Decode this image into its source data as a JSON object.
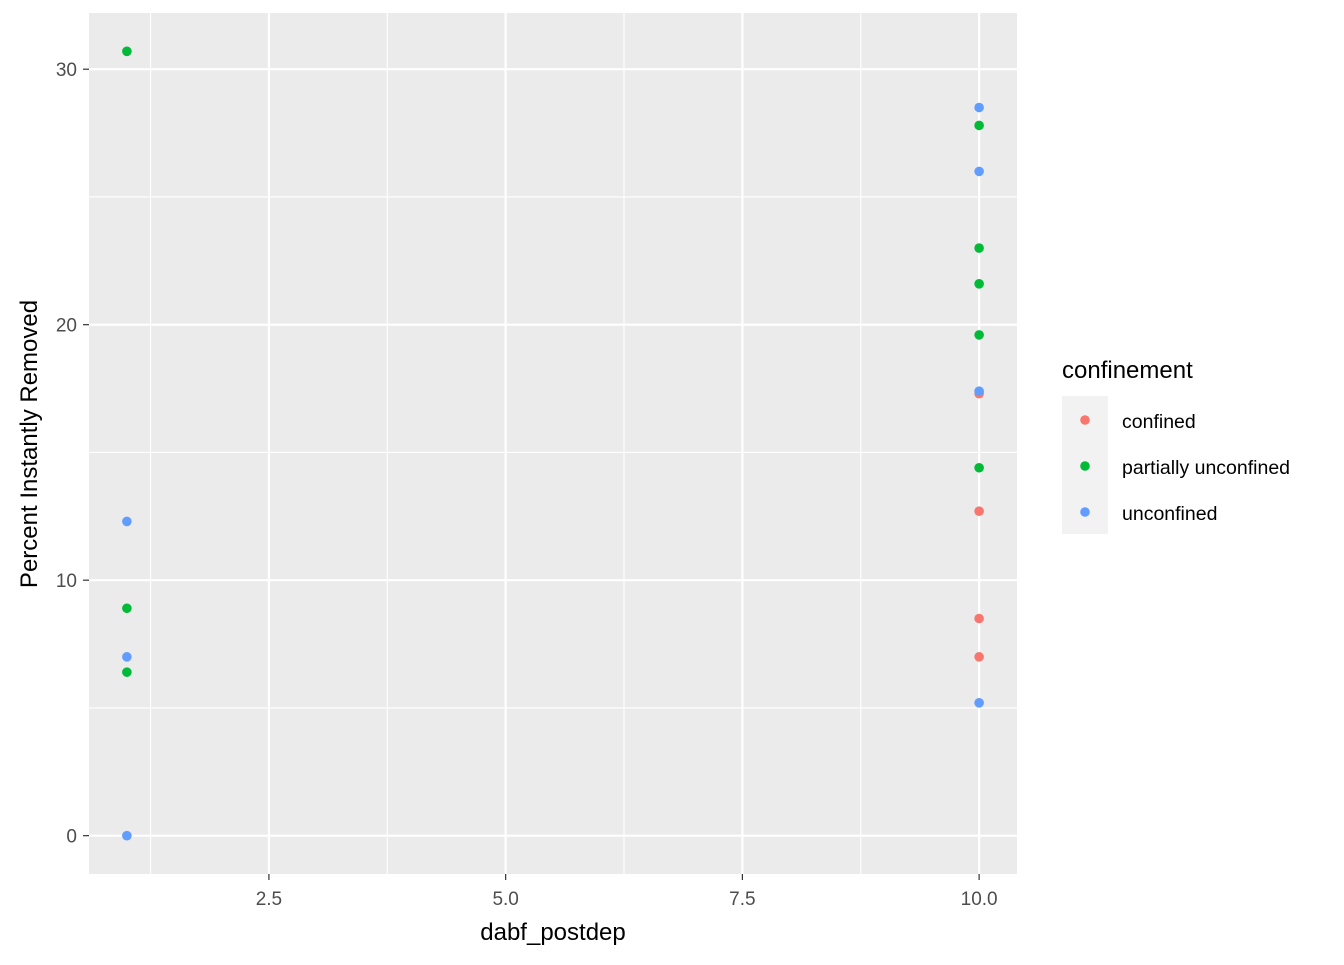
{
  "chart_data": {
    "type": "scatter",
    "title": "",
    "xlabel": "dabf_postdep",
    "ylabel": "Percent Instantly Removed",
    "xlim": [
      0.6,
      10.4
    ],
    "ylim": [
      -1.5,
      32.2
    ],
    "x_ticks": [
      2.5,
      5.0,
      7.5,
      10.0
    ],
    "x_tick_labels": [
      "2.5",
      "5.0",
      "7.5",
      "10.0"
    ],
    "y_ticks": [
      0,
      10,
      20,
      30
    ],
    "y_tick_labels": [
      "0",
      "10",
      "20",
      "30"
    ],
    "grid": true,
    "legend": {
      "title": "confinement",
      "position": "right"
    },
    "series": [
      {
        "name": "confined",
        "color": "#F8766D",
        "points": [
          [
            10,
            17.3
          ],
          [
            10,
            12.7
          ],
          [
            10,
            8.5
          ],
          [
            10,
            7.0
          ]
        ]
      },
      {
        "name": "partially unconfined",
        "color": "#00BA38",
        "points": [
          [
            1,
            30.7
          ],
          [
            1,
            8.9
          ],
          [
            1,
            6.4
          ],
          [
            10,
            27.8
          ],
          [
            10,
            23.0
          ],
          [
            10,
            21.6
          ],
          [
            10,
            19.6
          ],
          [
            10,
            14.4
          ]
        ]
      },
      {
        "name": "unconfined",
        "color": "#619CFF",
        "points": [
          [
            1,
            12.3
          ],
          [
            1,
            7.0
          ],
          [
            1,
            0.0
          ],
          [
            10,
            28.5
          ],
          [
            10,
            26.0
          ],
          [
            10,
            17.4
          ],
          [
            10,
            5.2
          ]
        ]
      }
    ]
  },
  "colors": {
    "panel_background": "#EBEBEB",
    "grid_major": "#FFFFFF",
    "tick_text": "#4D4D4D"
  }
}
